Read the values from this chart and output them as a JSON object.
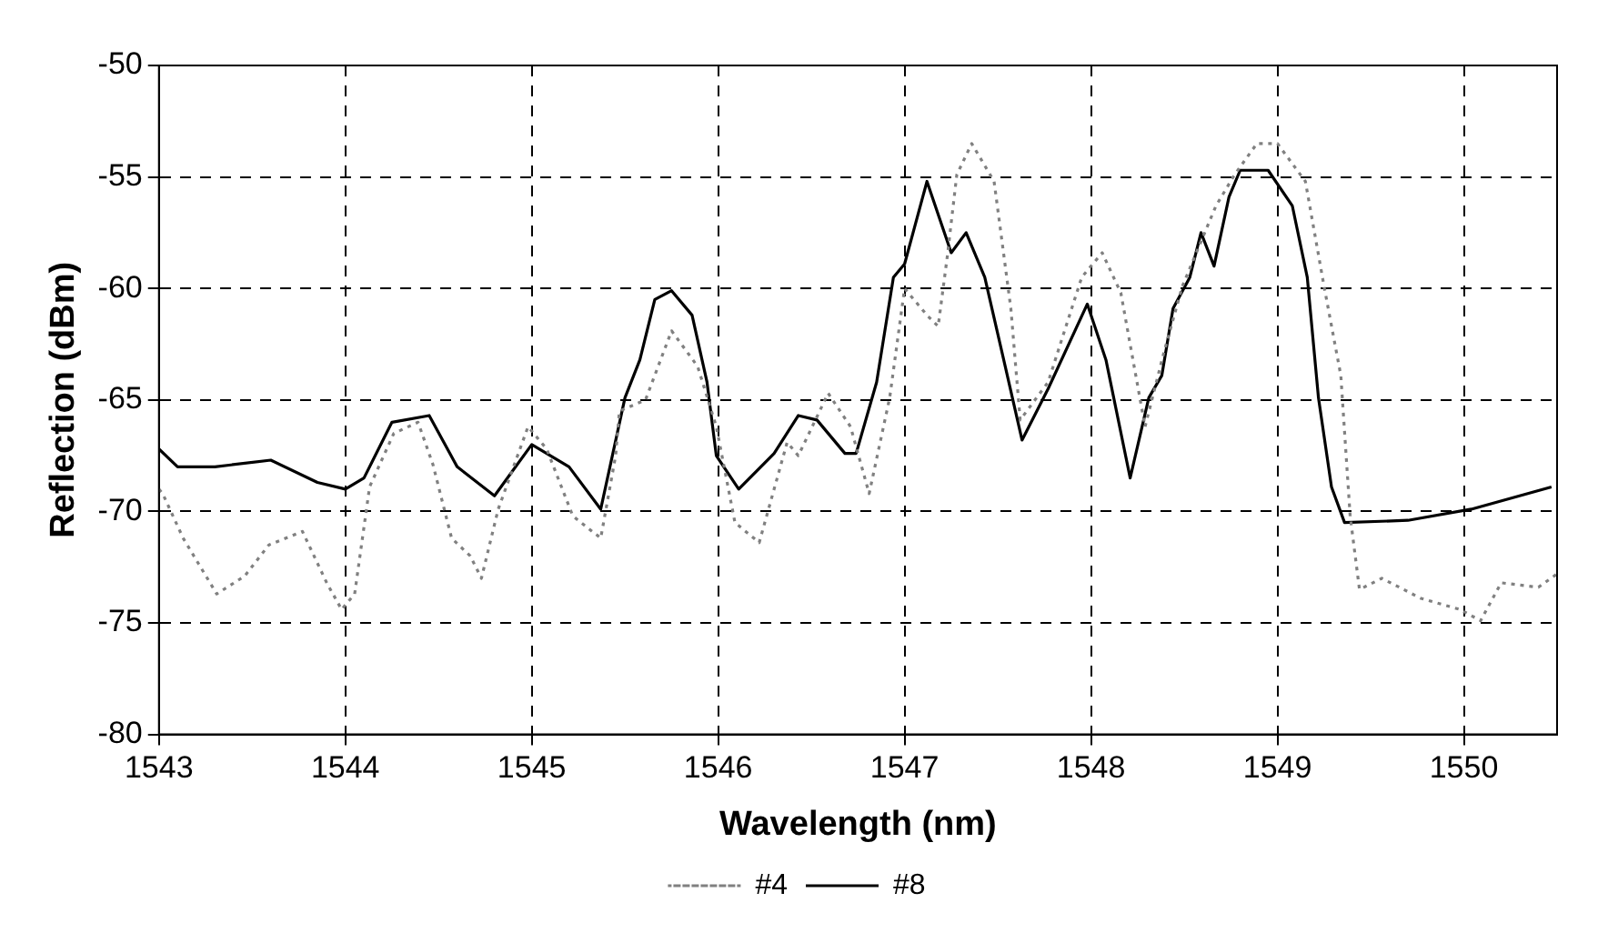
{
  "chart_data": {
    "type": "line",
    "xlabel": "Wavelength (nm)",
    "ylabel": "Reflection (dBm)",
    "xlim": [
      1543,
      1550.5
    ],
    "xticks": [
      1543,
      1544,
      1545,
      1546,
      1547,
      1548,
      1549,
      1550
    ],
    "ylim": [
      -80,
      -50
    ],
    "yticks": [
      -80,
      -75,
      -70,
      -65,
      -60,
      -55,
      -50
    ],
    "grid": true,
    "legend": "bottom",
    "marker": "none",
    "series": [
      {
        "name": "#4",
        "color": "#808080",
        "line_style": "dotted",
        "x": [
          1543.0,
          1543.02,
          1543.13,
          1543.31,
          1543.46,
          1543.59,
          1543.77,
          1543.9,
          1543.98,
          1544.05,
          1544.13,
          1544.26,
          1544.39,
          1544.47,
          1544.57,
          1544.67,
          1544.73,
          1544.82,
          1544.98,
          1545.08,
          1545.22,
          1545.37,
          1545.45,
          1545.47,
          1545.61,
          1545.75,
          1545.89,
          1545.99,
          1546.09,
          1546.22,
          1546.37,
          1546.43,
          1546.59,
          1546.71,
          1546.81,
          1546.92,
          1547.0,
          1547.12,
          1547.18,
          1547.23,
          1547.28,
          1547.36,
          1547.48,
          1547.57,
          1547.62,
          1547.77,
          1547.95,
          1548.06,
          1548.16,
          1548.29,
          1548.39,
          1548.49,
          1548.67,
          1548.77,
          1548.89,
          1549.0,
          1549.15,
          1549.25,
          1549.34,
          1549.39,
          1549.44,
          1549.56,
          1549.77,
          1549.98,
          1550.09,
          1550.2,
          1550.4,
          1550.5
        ],
        "values": [
          -69.0,
          -69.2,
          -71.2,
          -73.7,
          -72.9,
          -71.5,
          -70.9,
          -73.2,
          -74.4,
          -73.7,
          -68.9,
          -66.5,
          -66.0,
          -67.9,
          -71.2,
          -72.0,
          -73.0,
          -69.9,
          -66.2,
          -67.2,
          -70.2,
          -71.2,
          -67.5,
          -65.5,
          -65.0,
          -61.9,
          -63.5,
          -66.2,
          -70.5,
          -71.4,
          -66.9,
          -67.5,
          -64.7,
          -66.2,
          -69.2,
          -64.9,
          -60.0,
          -61.2,
          -61.7,
          -58.5,
          -54.9,
          -53.5,
          -55.2,
          -60.9,
          -65.9,
          -64.2,
          -59.5,
          -58.4,
          -60.2,
          -66.2,
          -62.9,
          -59.9,
          -56.3,
          -54.9,
          -53.5,
          -53.5,
          -55.2,
          -59.9,
          -63.9,
          -70.2,
          -73.5,
          -73.0,
          -73.9,
          -74.4,
          -74.9,
          -73.2,
          -73.4,
          -72.8
        ]
      },
      {
        "name": "#8",
        "color": "#000000",
        "line_style": "solid",
        "x": [
          1543.0,
          1543.1,
          1543.3,
          1543.6,
          1543.85,
          1544.0,
          1544.1,
          1544.25,
          1544.45,
          1544.6,
          1544.8,
          1545.0,
          1545.2,
          1545.37,
          1545.5,
          1545.58,
          1545.66,
          1545.75,
          1545.86,
          1545.94,
          1545.99,
          1546.11,
          1546.3,
          1546.43,
          1546.53,
          1546.68,
          1546.74,
          1546.85,
          1546.94,
          1547.0,
          1547.12,
          1547.25,
          1547.33,
          1547.43,
          1547.54,
          1547.63,
          1547.77,
          1547.98,
          1548.08,
          1548.21,
          1548.31,
          1548.38,
          1548.44,
          1548.53,
          1548.59,
          1548.66,
          1548.74,
          1548.8,
          1548.95,
          1549.08,
          1549.16,
          1549.22,
          1549.29,
          1549.36,
          1549.7,
          1550.04,
          1550.47
        ],
        "values": [
          -67.2,
          -68.0,
          -68.0,
          -67.7,
          -68.7,
          -69.0,
          -68.5,
          -66.0,
          -65.7,
          -68.0,
          -69.3,
          -67.0,
          -68.0,
          -69.9,
          -64.9,
          -63.2,
          -60.5,
          -60.1,
          -61.2,
          -64.2,
          -67.5,
          -69.0,
          -67.4,
          -65.7,
          -65.9,
          -67.4,
          -67.4,
          -64.2,
          -59.5,
          -58.9,
          -55.2,
          -58.4,
          -57.5,
          -59.5,
          -63.5,
          -66.8,
          -64.5,
          -60.7,
          -63.2,
          -68.5,
          -64.9,
          -63.9,
          -60.9,
          -59.5,
          -57.5,
          -59.0,
          -55.9,
          -54.7,
          -54.7,
          -56.3,
          -59.5,
          -64.9,
          -68.9,
          -70.5,
          -70.4,
          -69.9,
          -68.9
        ]
      }
    ]
  }
}
